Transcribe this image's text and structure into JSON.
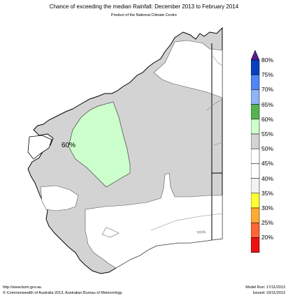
{
  "title": "Chance of exceeding the median Rainfall: December 2013 to February 2014",
  "subtitle": "Product of the National Climate Centre",
  "map_label": "60%",
  "legend": {
    "items": [
      {
        "label": "80%",
        "color": "#0a3fbf"
      },
      {
        "label": "75%",
        "color": "#4f86f7"
      },
      {
        "label": "70%",
        "color": "#8fb3f7"
      },
      {
        "label": "65%",
        "color": "#55b352"
      },
      {
        "label": "60%",
        "color": "#ccffcc"
      },
      {
        "label": "55%",
        "color": "#d3d3d3"
      },
      {
        "label": "50%",
        "color": "#ffffff"
      },
      {
        "label": "45%",
        "color": "#ffffff"
      },
      {
        "label": "40%",
        "color": "#f2f2f2"
      },
      {
        "label": "35%",
        "color": "#ffff33"
      },
      {
        "label": "30%",
        "color": "#ffaa33"
      },
      {
        "label": "25%",
        "color": "#ff6633"
      },
      {
        "label": "20%",
        "color": "#ee1111"
      }
    ],
    "top_arrow_color": "#5a1a8c",
    "bottom_arrow_color": "#8b5a14"
  },
  "footer": {
    "left_line1": "http://www.bom.gov.au",
    "left_line2": "©  Commonwealth of Australia 2013, Australian Bureau of Meteorology",
    "right_line1": "Model Run: 17/11/2013",
    "right_line2": "Issued: 19/11/2013"
  }
}
